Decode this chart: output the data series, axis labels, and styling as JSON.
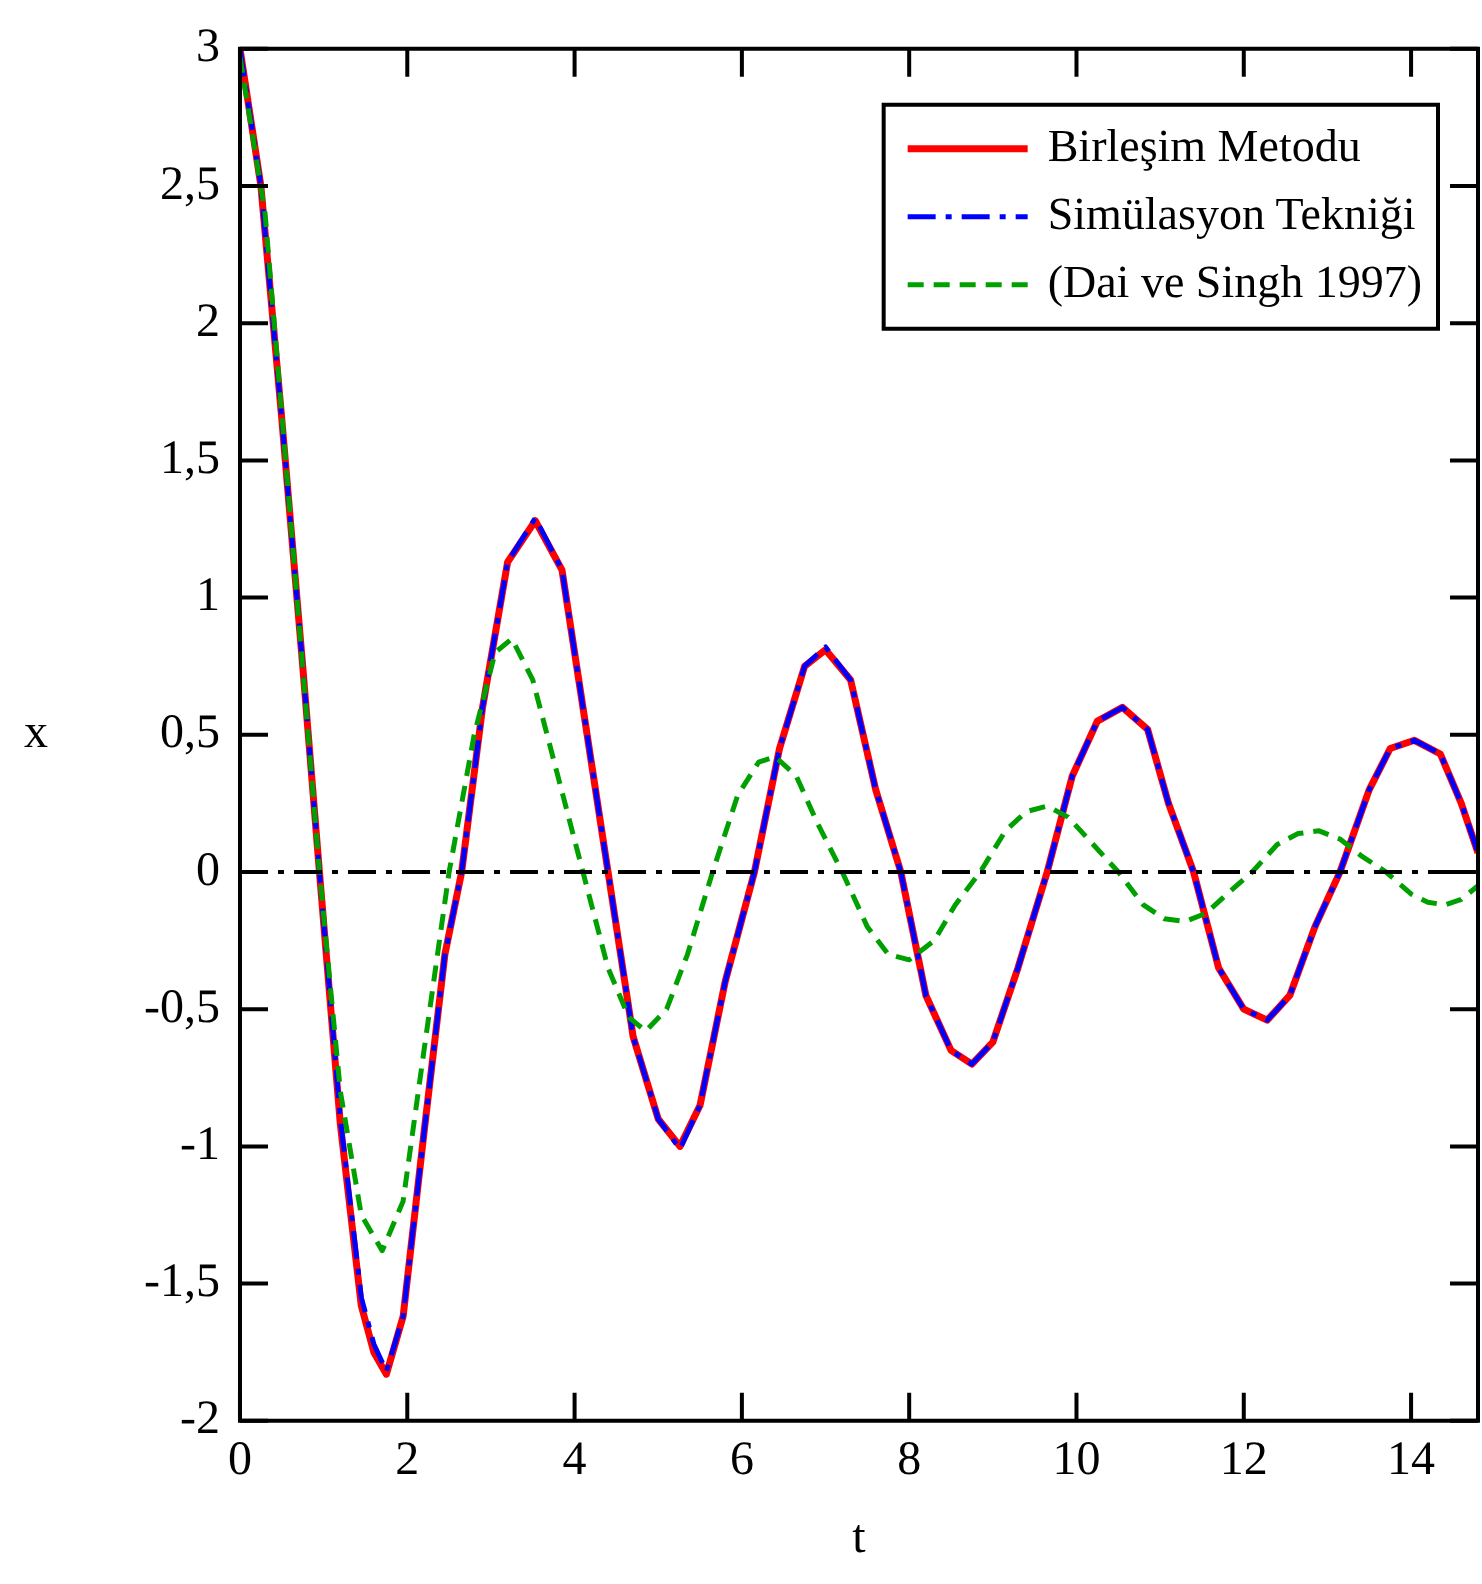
{
  "chart_data": {
    "type": "line",
    "xlabel": "t",
    "ylabel": "x",
    "xlim": [
      0,
      14.8
    ],
    "xticks": [
      0,
      2,
      4,
      6,
      8,
      10,
      12,
      14
    ],
    "ylim": [
      -2,
      3
    ],
    "yticks": [
      {
        "value": -2,
        "label": "-2"
      },
      {
        "value": -1.5,
        "label": "-1,5"
      },
      {
        "value": -1,
        "label": "-1"
      },
      {
        "value": -0.5,
        "label": "-0,5"
      },
      {
        "value": 0,
        "label": "0"
      },
      {
        "value": 0.5,
        "label": "0,5"
      },
      {
        "value": 1,
        "label": "1"
      },
      {
        "value": 1.5,
        "label": "1,5"
      },
      {
        "value": 2,
        "label": "2"
      },
      {
        "value": 2.5,
        "label": "2,5"
      },
      {
        "value": 3,
        "label": "3"
      }
    ],
    "grid": false,
    "legend": "top right",
    "marker": "none",
    "ref_lines": [
      {
        "axis": "y",
        "value": 0,
        "color": "#000000",
        "line_style": "dashdot"
      }
    ],
    "series": [
      {
        "name": "Birleşim Metodu",
        "color": "#ff0000",
        "line_style": "solid",
        "x": [
          0,
          0.25,
          0.5,
          0.75,
          0.95,
          1.2,
          1.45,
          1.6,
          1.75,
          1.95,
          2.2,
          2.45,
          2.65,
          2.9,
          3.2,
          3.53,
          3.85,
          4.1,
          4.4,
          4.7,
          5.0,
          5.26,
          5.5,
          5.8,
          6.15,
          6.45,
          6.75,
          7.0,
          7.3,
          7.6,
          7.9,
          8.2,
          8.5,
          8.75,
          9.0,
          9.3,
          9.65,
          9.95,
          10.25,
          10.55,
          10.85,
          11.1,
          11.4,
          11.7,
          12.0,
          12.28,
          12.55,
          12.85,
          13.15,
          13.5,
          13.75,
          14.04,
          14.35,
          14.6,
          14.8
        ],
        "values": [
          3,
          2.5,
          1.65,
          0.75,
          0,
          -0.92,
          -1.58,
          -1.75,
          -1.83,
          -1.62,
          -0.95,
          -0.3,
          0,
          0.6,
          1.13,
          1.28,
          1.1,
          0.6,
          0,
          -0.6,
          -0.9,
          -1.0,
          -0.85,
          -0.4,
          0,
          0.45,
          0.75,
          0.81,
          0.7,
          0.3,
          0,
          -0.45,
          -0.65,
          -0.7,
          -0.62,
          -0.35,
          0,
          0.35,
          0.55,
          0.6,
          0.52,
          0.25,
          0,
          -0.35,
          -0.5,
          -0.54,
          -0.45,
          -0.2,
          0,
          0.3,
          0.45,
          0.48,
          0.43,
          0.25,
          0.07
        ]
      },
      {
        "name": "Simülasyon Tekniği",
        "color": "#0000ff",
        "line_style": "dashdot",
        "x": [
          0,
          0.25,
          0.5,
          0.75,
          0.95,
          1.2,
          1.45,
          1.6,
          1.75,
          1.95,
          2.2,
          2.45,
          2.65,
          2.9,
          3.2,
          3.53,
          3.85,
          4.1,
          4.4,
          4.7,
          5.0,
          5.26,
          5.5,
          5.8,
          6.15,
          6.45,
          6.75,
          7.0,
          7.3,
          7.6,
          7.9,
          8.2,
          8.5,
          8.75,
          9.0,
          9.3,
          9.65,
          9.95,
          10.25,
          10.55,
          10.85,
          11.1,
          11.4,
          11.7,
          12.0,
          12.28,
          12.55,
          12.85,
          13.15,
          13.5,
          13.75,
          14.04,
          14.35,
          14.6,
          14.8
        ],
        "values": [
          3,
          2.5,
          1.65,
          0.75,
          0,
          -0.9,
          -1.55,
          -1.72,
          -1.82,
          -1.62,
          -0.95,
          -0.3,
          0,
          0.6,
          1.13,
          1.29,
          1.1,
          0.6,
          0,
          -0.6,
          -0.9,
          -1.01,
          -0.85,
          -0.4,
          0,
          0.45,
          0.75,
          0.82,
          0.7,
          0.3,
          0,
          -0.45,
          -0.65,
          -0.7,
          -0.62,
          -0.35,
          0,
          0.35,
          0.55,
          0.6,
          0.52,
          0.25,
          0,
          -0.35,
          -0.5,
          -0.54,
          -0.45,
          -0.2,
          0,
          0.3,
          0.45,
          0.48,
          0.43,
          0.25,
          0.07
        ]
      },
      {
        "name": "(Dai ve Singh 1997)",
        "color": "#00a000",
        "line_style": "dashed",
        "x": [
          0,
          0.3,
          0.6,
          0.95,
          1.2,
          1.45,
          1.7,
          1.95,
          2.2,
          2.5,
          2.8,
          3.05,
          3.25,
          3.5,
          3.8,
          4.1,
          4.4,
          4.65,
          4.85,
          5.1,
          5.35,
          5.65,
          5.95,
          6.2,
          6.4,
          6.65,
          6.9,
          7.2,
          7.5,
          7.75,
          8.0,
          8.3,
          8.55,
          8.85,
          9.15,
          9.4,
          9.65,
          9.9,
          10.2,
          10.5,
          10.8,
          11.05,
          11.3,
          11.55,
          11.8,
          12.1,
          12.4,
          12.65,
          12.9,
          13.15,
          13.4,
          13.7,
          14.0,
          14.2,
          14.4,
          14.6,
          14.8
        ],
        "values": [
          2.97,
          2.4,
          1.3,
          0,
          -0.8,
          -1.25,
          -1.38,
          -1.2,
          -0.65,
          0,
          0.5,
          0.8,
          0.85,
          0.7,
          0.35,
          0,
          -0.35,
          -0.53,
          -0.58,
          -0.5,
          -0.3,
          0,
          0.28,
          0.4,
          0.42,
          0.35,
          0.18,
          0,
          -0.2,
          -0.3,
          -0.32,
          -0.25,
          -0.12,
          0,
          0.15,
          0.22,
          0.24,
          0.2,
          0.1,
          0,
          -0.12,
          -0.17,
          -0.18,
          -0.15,
          -0.08,
          0,
          0.1,
          0.14,
          0.15,
          0.12,
          0.06,
          0,
          -0.08,
          -0.11,
          -0.12,
          -0.1,
          -0.05
        ]
      }
    ]
  }
}
